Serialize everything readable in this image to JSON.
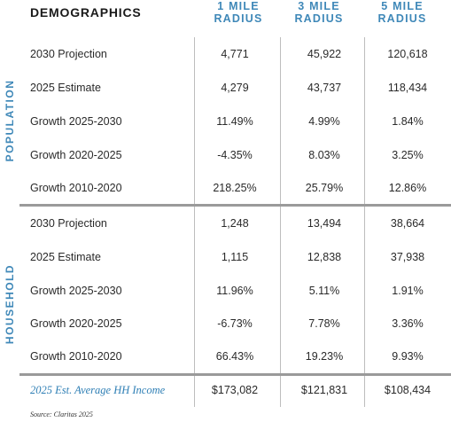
{
  "header": {
    "title": "DEMOGRAPHICS",
    "columns": [
      {
        "line1": "1 MILE",
        "line2": "RADIUS"
      },
      {
        "line1": "3 MILE",
        "line2": "RADIUS"
      },
      {
        "line1": "5 MILE",
        "line2": "RADIUS"
      }
    ]
  },
  "population": {
    "section_label": "POPULATION",
    "rows": [
      {
        "label": "2030 Projection",
        "values": [
          "4,771",
          "45,922",
          "120,618"
        ]
      },
      {
        "label": "2025 Estimate",
        "values": [
          "4,279",
          "43,737",
          "118,434"
        ]
      },
      {
        "label": "Growth 2025-2030",
        "values": [
          "11.49%",
          "4.99%",
          "1.84%"
        ]
      },
      {
        "label": "Growth 2020-2025",
        "values": [
          "-4.35%",
          "8.03%",
          "3.25%"
        ]
      },
      {
        "label": "Growth 2010-2020",
        "values": [
          "218.25%",
          "25.79%",
          "12.86%"
        ]
      }
    ]
  },
  "household": {
    "section_label": "HOUSEHOLD",
    "rows": [
      {
        "label": "2030 Projection",
        "values": [
          "1,248",
          "13,494",
          "38,664"
        ]
      },
      {
        "label": "2025 Estimate",
        "values": [
          "1,115",
          "12,838",
          "37,938"
        ]
      },
      {
        "label": "Growth 2025-2030",
        "values": [
          "11.96%",
          "5.11%",
          "1.91%"
        ]
      },
      {
        "label": "Growth 2020-2025",
        "values": [
          "-6.73%",
          "7.78%",
          "3.36%"
        ]
      },
      {
        "label": "Growth 2010-2020",
        "values": [
          "66.43%",
          "19.23%",
          "9.93%"
        ]
      },
      {
        "label": "2025 Est. Average  HH Income",
        "values": [
          "$173,082",
          "$121,831",
          "$108,434"
        ]
      }
    ]
  },
  "source": "Source: Claritas 2025",
  "colors": {
    "accent": "#3f88b8",
    "divider": "#9a9a9a"
  }
}
